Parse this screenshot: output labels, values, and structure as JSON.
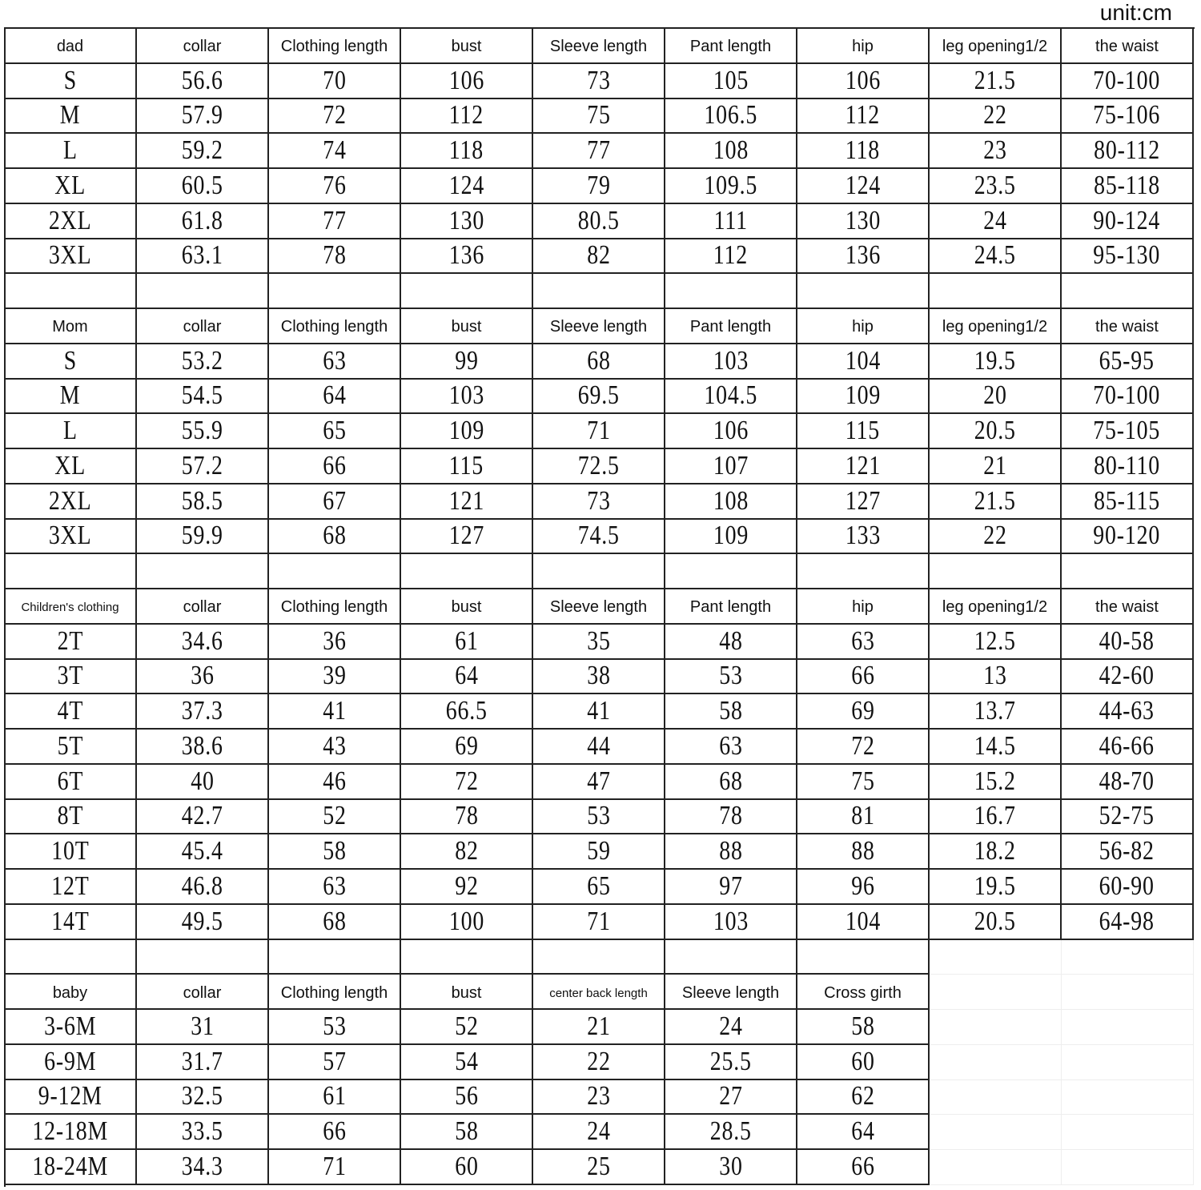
{
  "unit_label": "unit:cm",
  "sections": [
    {
      "name": "dad",
      "headers": [
        "dad",
        "collar",
        "Clothing length",
        "bust",
        "Sleeve length",
        "Pant length",
        "hip",
        "leg opening1/2",
        "the waist"
      ],
      "rows": [
        [
          "S",
          "56.6",
          "70",
          "106",
          "73",
          "105",
          "106",
          "21.5",
          "70-100"
        ],
        [
          "M",
          "57.9",
          "72",
          "112",
          "75",
          "106.5",
          "112",
          "22",
          "75-106"
        ],
        [
          "L",
          "59.2",
          "74",
          "118",
          "77",
          "108",
          "118",
          "23",
          "80-112"
        ],
        [
          "XL",
          "60.5",
          "76",
          "124",
          "79",
          "109.5",
          "124",
          "23.5",
          "85-118"
        ],
        [
          "2XL",
          "61.8",
          "77",
          "130",
          "80.5",
          "111",
          "130",
          "24",
          "90-124"
        ],
        [
          "3XL",
          "63.1",
          "78",
          "136",
          "82",
          "112",
          "136",
          "24.5",
          "95-130"
        ]
      ]
    },
    {
      "name": "mom",
      "headers": [
        "Mom",
        "collar",
        "Clothing length",
        "bust",
        "Sleeve length",
        "Pant length",
        "hip",
        "leg opening1/2",
        "the waist"
      ],
      "rows": [
        [
          "S",
          "53.2",
          "63",
          "99",
          "68",
          "103",
          "104",
          "19.5",
          "65-95"
        ],
        [
          "M",
          "54.5",
          "64",
          "103",
          "69.5",
          "104.5",
          "109",
          "20",
          "70-100"
        ],
        [
          "L",
          "55.9",
          "65",
          "109",
          "71",
          "106",
          "115",
          "20.5",
          "75-105"
        ],
        [
          "XL",
          "57.2",
          "66",
          "115",
          "72.5",
          "107",
          "121",
          "21",
          "80-110"
        ],
        [
          "2XL",
          "58.5",
          "67",
          "121",
          "73",
          "108",
          "127",
          "21.5",
          "85-115"
        ],
        [
          "3XL",
          "59.9",
          "68",
          "127",
          "74.5",
          "109",
          "133",
          "22",
          "90-120"
        ]
      ]
    },
    {
      "name": "children",
      "headers": [
        "Children's clothing",
        "collar",
        "Clothing length",
        "bust",
        "Sleeve length",
        "Pant length",
        "hip",
        "leg opening1/2",
        "the waist"
      ],
      "rows": [
        [
          "2T",
          "34.6",
          "36",
          "61",
          "35",
          "48",
          "63",
          "12.5",
          "40-58"
        ],
        [
          "3T",
          "36",
          "39",
          "64",
          "38",
          "53",
          "66",
          "13",
          "42-60"
        ],
        [
          "4T",
          "37.3",
          "41",
          "66.5",
          "41",
          "58",
          "69",
          "13.7",
          "44-63"
        ],
        [
          "5T",
          "38.6",
          "43",
          "69",
          "44",
          "63",
          "72",
          "14.5",
          "46-66"
        ],
        [
          "6T",
          "40",
          "46",
          "72",
          "47",
          "68",
          "75",
          "15.2",
          "48-70"
        ],
        [
          "8T",
          "42.7",
          "52",
          "78",
          "53",
          "78",
          "81",
          "16.7",
          "52-75"
        ],
        [
          "10T",
          "45.4",
          "58",
          "82",
          "59",
          "88",
          "88",
          "18.2",
          "56-82"
        ],
        [
          "12T",
          "46.8",
          "63",
          "92",
          "65",
          "97",
          "96",
          "19.5",
          "60-90"
        ],
        [
          "14T",
          "49.5",
          "68",
          "100",
          "71",
          "103",
          "104",
          "20.5",
          "64-98"
        ]
      ]
    },
    {
      "name": "baby",
      "headers": [
        "baby",
        "collar",
        "Clothing length",
        "bust",
        "center back length",
        "Sleeve length",
        "Cross girth"
      ],
      "rows": [
        [
          "3-6M",
          "31",
          "53",
          "52",
          "21",
          "24",
          "58"
        ],
        [
          "6-9M",
          "31.7",
          "57",
          "54",
          "22",
          "25.5",
          "60"
        ],
        [
          "9-12M",
          "32.5",
          "61",
          "56",
          "23",
          "27",
          "62"
        ],
        [
          "12-18M",
          "33.5",
          "66",
          "58",
          "24",
          "28.5",
          "64"
        ],
        [
          "18-24M",
          "34.3",
          "71",
          "60",
          "25",
          "30",
          "66"
        ]
      ]
    }
  ]
}
